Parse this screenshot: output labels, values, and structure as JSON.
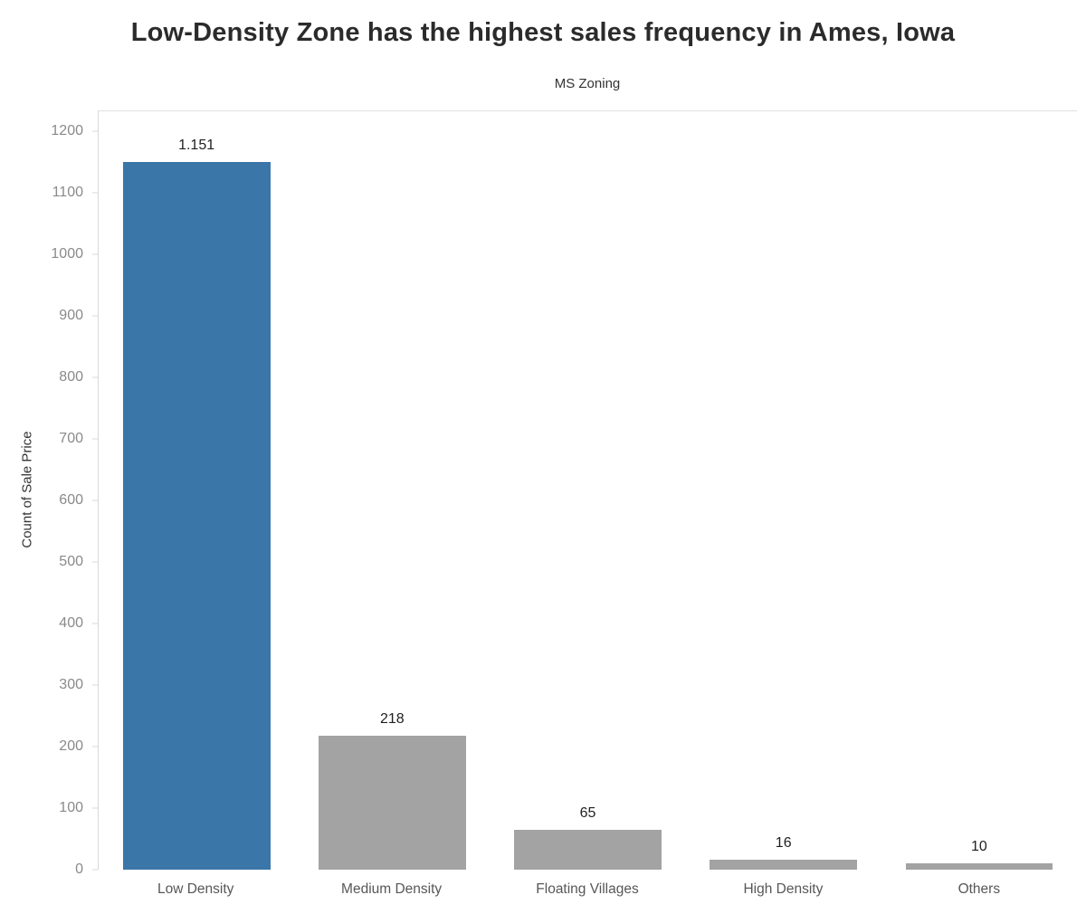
{
  "page": {
    "title": "Low-Density Zone has the highest sales frequency in Ames, Iowa"
  },
  "chart_data": {
    "type": "bar",
    "title": "Low-Density Zone has the highest sales frequency in Ames, Iowa",
    "subtitle": "MS Zoning",
    "xlabel": "",
    "ylabel": "Count of Sale Price",
    "categories": [
      "Low Density",
      "Medium Density",
      "Floating Villages",
      "High Density",
      "Others"
    ],
    "values": [
      1151,
      218,
      65,
      16,
      10
    ],
    "value_labels": [
      "1.151",
      "218",
      "65",
      "16",
      "10"
    ],
    "bar_colors": [
      "#3b76a8",
      "#a3a3a3",
      "#a3a3a3",
      "#a3a3a3",
      "#a3a3a3"
    ],
    "highlight_color": "#3b76a8",
    "default_bar_color": "#a3a3a3",
    "yticks": [
      0,
      100,
      200,
      300,
      400,
      500,
      600,
      700,
      800,
      900,
      1000,
      1100,
      1200
    ],
    "ylim": [
      0,
      1234
    ],
    "grid": false,
    "legend": "none"
  }
}
